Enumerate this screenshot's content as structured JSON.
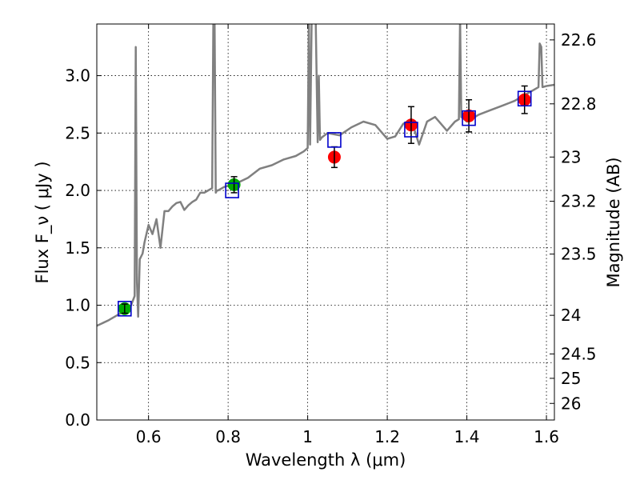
{
  "chart_data": {
    "type": "scatter",
    "xlabel": "Wavelength  λ (μm)",
    "ylabel": "Flux  F_ν  ( μJy )",
    "y2label": "Magnitude (AB)",
    "xlim": [
      0.47,
      1.62
    ],
    "ylim": [
      0.0,
      3.45
    ],
    "grid": true,
    "x_ticks": [
      0.6,
      0.8,
      1.0,
      1.2,
      1.4,
      1.6
    ],
    "x_tick_labels": [
      "0.6",
      "0.8",
      "1",
      "1.2",
      "1.4",
      "1.6"
    ],
    "y_ticks": [
      0.0,
      0.5,
      1.0,
      1.5,
      2.0,
      2.5,
      3.0
    ],
    "y_tick_labels": [
      "0.0",
      "0.5",
      "1.0",
      "1.5",
      "2.0",
      "2.5",
      "3.0"
    ],
    "y2_ticks": [
      22.6,
      22.8,
      23,
      23.2,
      23.5,
      24,
      24.5,
      25,
      26
    ],
    "y2_tick_labels": [
      "22.6",
      "22.8",
      "23",
      "23.2",
      "23.5",
      "24",
      "24.5",
      "25",
      "26"
    ],
    "colors": {
      "model": "#808080",
      "green": "#00aa00",
      "red": "#ff0000",
      "box": "#0000cc",
      "errbar": "#000000"
    },
    "model_spectrum": {
      "x": [
        0.47,
        0.5,
        0.53,
        0.555,
        0.565,
        0.568,
        0.571,
        0.574,
        0.578,
        0.585,
        0.59,
        0.6,
        0.61,
        0.62,
        0.63,
        0.64,
        0.65,
        0.66,
        0.67,
        0.68,
        0.69,
        0.7,
        0.71,
        0.72,
        0.73,
        0.74,
        0.75,
        0.76,
        0.763,
        0.766,
        0.769,
        0.772,
        0.775,
        0.79,
        0.82,
        0.85,
        0.88,
        0.91,
        0.94,
        0.97,
        0.99,
        1.0,
        1.003,
        1.006,
        1.01,
        1.02,
        1.025,
        1.028,
        1.031,
        1.035,
        1.05,
        1.08,
        1.11,
        1.14,
        1.17,
        1.2,
        1.22,
        1.24,
        1.26,
        1.28,
        1.3,
        1.32,
        1.35,
        1.37,
        1.38,
        1.383,
        1.386,
        1.39,
        1.4,
        1.43,
        1.46,
        1.49,
        1.52,
        1.55,
        1.57,
        1.58,
        1.583,
        1.587,
        1.59,
        1.6,
        1.62
      ],
      "y": [
        0.82,
        0.87,
        0.93,
        0.99,
        1.08,
        3.25,
        1.2,
        0.9,
        1.4,
        1.45,
        1.55,
        1.7,
        1.62,
        1.75,
        1.5,
        1.82,
        1.82,
        1.86,
        1.89,
        1.9,
        1.83,
        1.87,
        1.9,
        1.92,
        1.98,
        1.98,
        2.0,
        2.02,
        3.5,
        3.5,
        1.98,
        2.0,
        2.0,
        2.03,
        2.06,
        2.11,
        2.19,
        2.22,
        2.27,
        2.3,
        2.34,
        2.37,
        3.5,
        2.4,
        3.5,
        3.5,
        2.42,
        3.0,
        2.44,
        2.46,
        2.5,
        2.48,
        2.55,
        2.6,
        2.57,
        2.45,
        2.47,
        2.58,
        2.62,
        2.4,
        2.6,
        2.64,
        2.52,
        2.6,
        2.62,
        3.5,
        2.64,
        2.63,
        2.6,
        2.66,
        2.7,
        2.74,
        2.78,
        2.84,
        2.88,
        2.9,
        3.28,
        3.25,
        2.9,
        2.91,
        2.92
      ]
    },
    "series": [
      {
        "name": "",
        "color": "green",
        "marker": "circle",
        "x": [
          0.54,
          0.815
        ],
        "y": [
          0.97,
          2.05
        ],
        "yerr": [
          0.04,
          0.07
        ]
      },
      {
        "name": "",
        "color": "red",
        "marker": "circle",
        "x": [
          1.067,
          1.26,
          1.405,
          1.545
        ],
        "y": [
          2.29,
          2.57,
          2.65,
          2.79
        ],
        "yerr": [
          0.09,
          0.16,
          0.14,
          0.12
        ]
      },
      {
        "name": "",
        "color": "box",
        "marker": "open-square",
        "x": [
          0.54,
          0.81,
          1.067,
          1.26,
          1.405,
          1.545
        ],
        "y": [
          0.97,
          2.0,
          2.44,
          2.53,
          2.63,
          2.8
        ]
      }
    ]
  }
}
